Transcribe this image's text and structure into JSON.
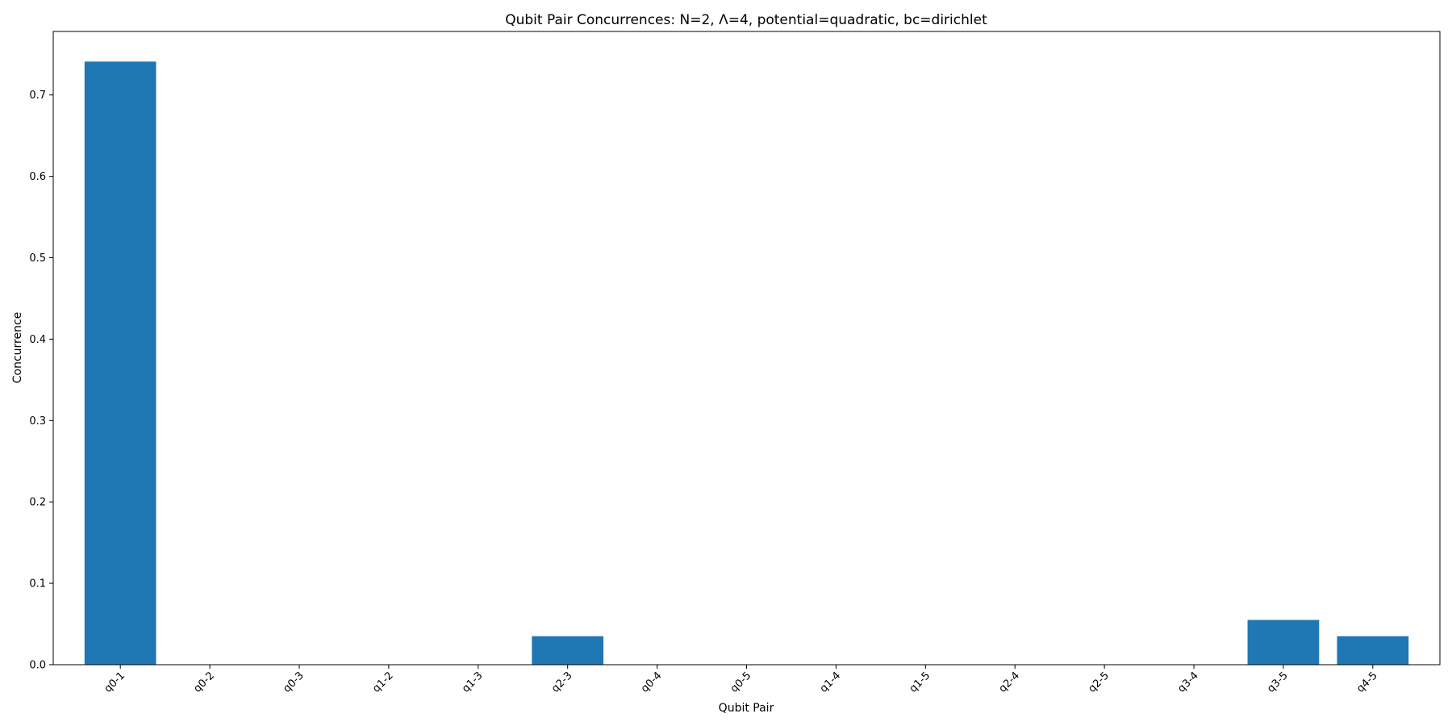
{
  "chart_data": {
    "type": "bar",
    "title": "Qubit Pair Concurrences: N=2, Λ=4, potential=quadratic, bc=dirichlet",
    "xlabel": "Qubit Pair",
    "ylabel": "Concurrence",
    "categories": [
      "q0-1",
      "q0-2",
      "q0-3",
      "q1-2",
      "q1-3",
      "q2-3",
      "q0-4",
      "q0-5",
      "q1-4",
      "q1-5",
      "q2-4",
      "q2-5",
      "q3-4",
      "q3-5",
      "q4-5"
    ],
    "values": [
      0.741,
      0,
      0,
      0,
      0,
      0.035,
      0,
      0,
      0,
      0,
      0,
      0,
      0,
      0.055,
      0.035
    ],
    "ylim": [
      0,
      0.778
    ],
    "yticks": [
      0.0,
      0.1,
      0.2,
      0.3,
      0.4,
      0.5,
      0.6,
      0.7
    ],
    "ytick_labels": [
      "0.0",
      "0.1",
      "0.2",
      "0.3",
      "0.4",
      "0.5",
      "0.6",
      "0.7"
    ],
    "bar_color": "#1f77b4",
    "grid": false,
    "legend": "none"
  }
}
